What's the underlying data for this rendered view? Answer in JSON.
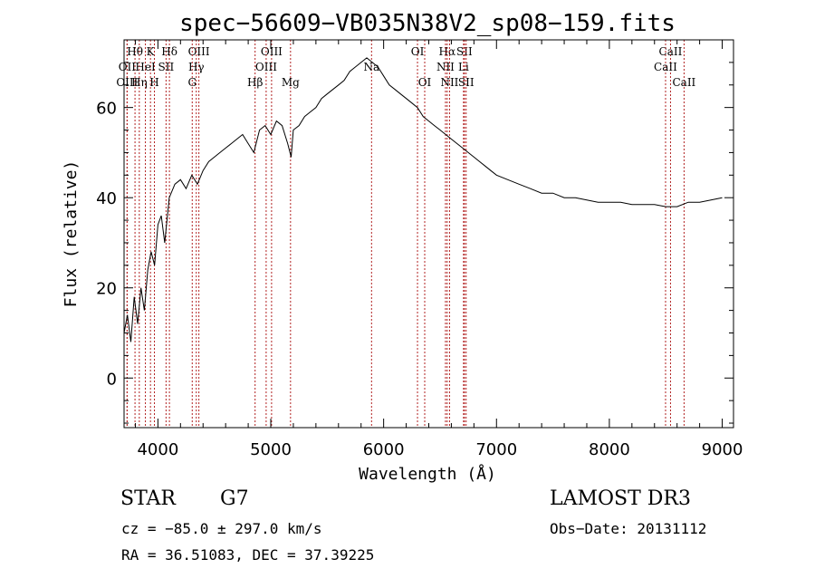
{
  "chart_data": {
    "type": "line",
    "title": "spec−56609−VB035N38V2_sp08−159.fits",
    "xlabel": "Wavelength (Å)",
    "ylabel": "Flux (relative)",
    "xlim": [
      3700,
      9100
    ],
    "ylim": [
      -11,
      75
    ],
    "xticks": [
      4000,
      5000,
      6000,
      7000,
      8000,
      9000
    ],
    "yticks": [
      0,
      20,
      40,
      60
    ],
    "spectrum": {
      "name": "flux",
      "x": [
        3700,
        3730,
        3760,
        3790,
        3820,
        3850,
        3880,
        3910,
        3940,
        3970,
        4000,
        4030,
        4060,
        4100,
        4150,
        4200,
        4250,
        4300,
        4350,
        4400,
        4450,
        4500,
        4550,
        4600,
        4650,
        4700,
        4750,
        4800,
        4850,
        4900,
        4950,
        5000,
        5050,
        5100,
        5150,
        5180,
        5200,
        5250,
        5300,
        5350,
        5400,
        5450,
        5500,
        5550,
        5600,
        5650,
        5700,
        5750,
        5800,
        5850,
        5900,
        5950,
        6000,
        6050,
        6100,
        6150,
        6200,
        6250,
        6300,
        6350,
        6400,
        6450,
        6500,
        6550,
        6600,
        6650,
        6700,
        6750,
        6800,
        6850,
        6900,
        6950,
        7000,
        7100,
        7200,
        7300,
        7400,
        7500,
        7600,
        7700,
        7800,
        7900,
        8000,
        8100,
        8200,
        8300,
        8400,
        8500,
        8600,
        8700,
        8800,
        8900,
        9000
      ],
      "y": [
        10,
        14,
        8,
        18,
        12,
        20,
        15,
        24,
        28,
        25,
        34,
        36,
        30,
        40,
        43,
        44,
        42,
        45,
        43,
        46,
        48,
        49,
        50,
        51,
        52,
        53,
        54,
        52,
        50,
        55,
        56,
        54,
        57,
        56,
        52,
        49,
        55,
        56,
        58,
        59,
        60,
        62,
        63,
        64,
        65,
        66,
        68,
        69,
        70,
        71,
        70,
        69,
        67,
        65,
        64,
        63,
        62,
        61,
        60,
        58,
        57,
        56,
        55,
        54,
        53,
        52,
        51,
        50,
        49,
        48,
        47,
        46,
        45,
        44,
        43,
        42,
        41,
        41,
        40,
        40,
        39.5,
        39,
        39,
        39,
        38.5,
        38.5,
        38.5,
        38,
        38,
        39,
        39,
        39.5,
        40
      ]
    },
    "spectral_lines": [
      {
        "label": "Hθ",
        "x": 3797,
        "row": 1
      },
      {
        "label": "OII",
        "x": 3727,
        "row": 2
      },
      {
        "label": "OIII",
        "x": 3727,
        "row": 3
      },
      {
        "label": "K",
        "x": 3934,
        "row": 1
      },
      {
        "label": "HeI",
        "x": 3889,
        "row": 2
      },
      {
        "label": "Hη",
        "x": 3835,
        "row": 3
      },
      {
        "label": "H",
        "x": 3969,
        "row": 3
      },
      {
        "label": "SII",
        "x": 4072,
        "row": 2
      },
      {
        "label": "Hδ",
        "x": 4102,
        "row": 1
      },
      {
        "label": "OIII",
        "x": 4363,
        "row": 1
      },
      {
        "label": "Hγ",
        "x": 4340,
        "row": 2
      },
      {
        "label": "G",
        "x": 4304,
        "row": 3
      },
      {
        "label": "Hβ",
        "x": 4861,
        "row": 3
      },
      {
        "label": "OIII",
        "x": 5007,
        "row": 1
      },
      {
        "label": "OIII",
        "x": 4959,
        "row": 2
      },
      {
        "label": "Mg",
        "x": 5175,
        "row": 3
      },
      {
        "label": "Na",
        "x": 5893,
        "row": 2
      },
      {
        "label": "OI",
        "x": 6300,
        "row": 1
      },
      {
        "label": "OI",
        "x": 6364,
        "row": 3
      },
      {
        "label": "Hα",
        "x": 6563,
        "row": 1
      },
      {
        "label": "SII",
        "x": 6716,
        "row": 1
      },
      {
        "label": "NII",
        "x": 6548,
        "row": 2
      },
      {
        "label": "Li",
        "x": 6708,
        "row": 2
      },
      {
        "label": "NII",
        "x": 6584,
        "row": 3
      },
      {
        "label": "SII",
        "x": 6731,
        "row": 3
      },
      {
        "label": "CaII",
        "x": 8542,
        "row": 1
      },
      {
        "label": "CaII",
        "x": 8498,
        "row": 2
      },
      {
        "label": "CaII",
        "x": 8662,
        "row": 3
      }
    ],
    "line_color": "#b22222"
  },
  "info": {
    "object_type": "STAR",
    "subclass": "G7",
    "survey": "LAMOST DR3",
    "cz": "cz = −85.0 ± 297.0 km/s",
    "obs_date": "Obs−Date: 20131112",
    "coords": "RA =  36.51083, DEC =  37.39225"
  }
}
